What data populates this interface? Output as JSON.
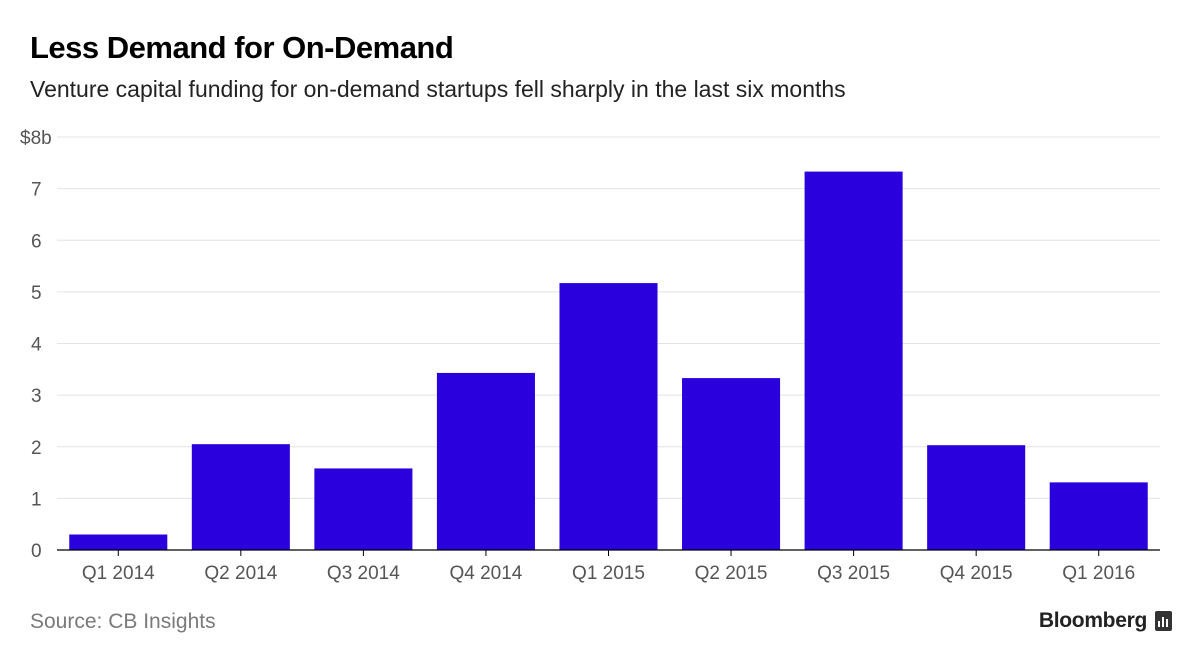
{
  "header": {
    "title": "Less Demand for On-Demand",
    "subtitle": "Venture capital funding for on-demand startups fell sharply in the last six months"
  },
  "footer": {
    "source": "Source: CB Insights",
    "brand": "Bloomberg"
  },
  "colors": {
    "bar": "#2a00dd",
    "grid": "#e3e3e3",
    "axis": "#000000",
    "tick_text": "#555555"
  },
  "chart_data": {
    "type": "bar",
    "title": "Less Demand for On-Demand",
    "subtitle": "Venture capital funding for on-demand startups fell sharply in the last six months",
    "categories": [
      "Q1 2014",
      "Q2 2014",
      "Q3 2014",
      "Q4 2014",
      "Q1 2015",
      "Q2 2015",
      "Q3 2015",
      "Q4 2015",
      "Q1 2016"
    ],
    "values": [
      0.3,
      2.05,
      1.58,
      3.43,
      5.17,
      3.33,
      7.33,
      2.03,
      1.31
    ],
    "xlabel": "",
    "ylabel": "",
    "y_ticks": [
      0,
      1,
      2,
      3,
      4,
      5,
      6,
      7,
      8
    ],
    "y_tick_labels": [
      "0",
      "1",
      "2",
      "3",
      "4",
      "5",
      "6",
      "7",
      "$8b"
    ],
    "ylim": [
      0,
      8
    ],
    "grid": true,
    "legend": "none"
  }
}
